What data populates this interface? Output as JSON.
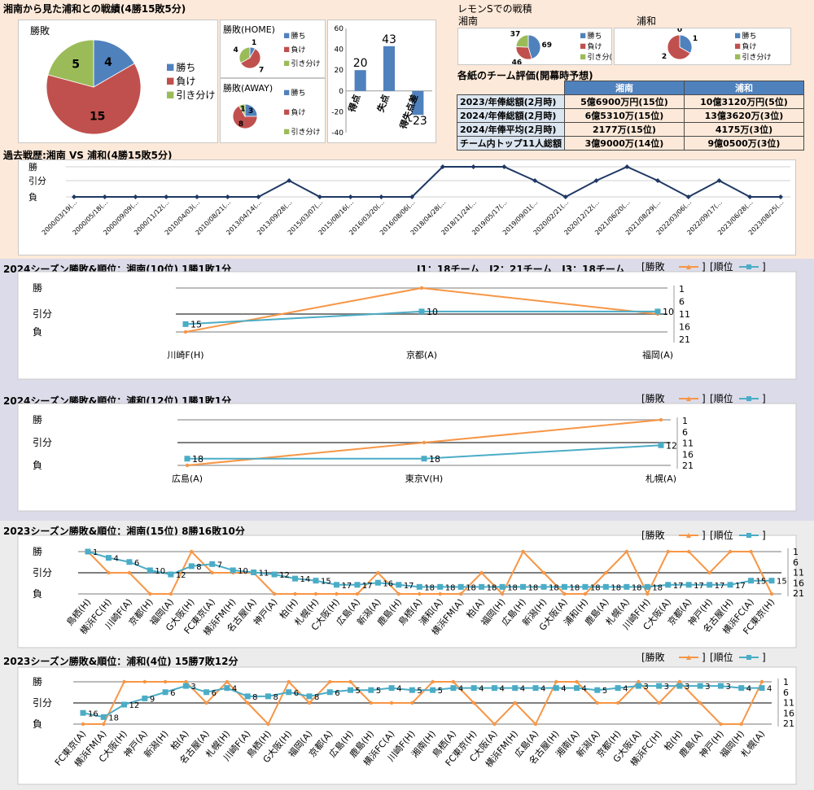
{
  "colors": {
    "win": "#4f81bd",
    "lose": "#c0504d",
    "draw": "#9bbb59",
    "result_line": "#f79646",
    "rank_line": "#4bacc6",
    "history_line": "#1f3864",
    "bg_top": "#fde9d9",
    "bg_mid": "#dcdbe9",
    "bg_bottom": "#ececec"
  },
  "summary": {
    "title": "湘南から見た浦和との戦績(4勝15敗5分)",
    "main_pie": {
      "label": "勝敗",
      "legend": [
        "勝ち",
        "負け",
        "引き分け"
      ],
      "values": [
        4,
        15,
        5
      ]
    },
    "home_pie": {
      "label": "勝敗(HOME)",
      "legend": [
        "勝ち",
        "負け",
        "引き分け"
      ],
      "values": [
        1,
        7,
        4
      ]
    },
    "away_pie": {
      "label": "勝敗(AWAY)",
      "legend": [
        "勝ち",
        "負け",
        "引き分け"
      ],
      "values": [
        3,
        8,
        1
      ]
    }
  },
  "goals_chart": {
    "categories": [
      "得点",
      "失点",
      "得失点差"
    ],
    "values": [
      20,
      43,
      -23
    ],
    "ylim": [
      -40,
      60
    ],
    "yticks": [
      "60",
      "40",
      "20",
      "0",
      "-20",
      "-40"
    ]
  },
  "lemons": {
    "title": "レモンSでの戦積",
    "shonan": {
      "label": "湘南",
      "legend": [
        "勝ち",
        "負け",
        "引き分("
      ],
      "values": [
        69,
        46,
        37
      ]
    },
    "urawa": {
      "label": "浦和",
      "legend": [
        "勝ち",
        "負け",
        "引き分け"
      ],
      "values": [
        1,
        2,
        0
      ]
    }
  },
  "evaluation": {
    "title": "各紙のチーム評価(開幕時予想)",
    "headers": [
      "湘南",
      "浦和"
    ],
    "rows": [
      {
        "label": "2023/年俸総額(2月時)",
        "shonan": "5億6900万円(15位)",
        "urawa": "10億3120万円(5位)"
      },
      {
        "label": "2024/年俸総額(2月時)",
        "shonan": "6億5310万(15位)",
        "urawa": "13億3620万(3位)"
      },
      {
        "label": "2024/年俸平均(2月時)",
        "shonan": "2177万(15位)",
        "urawa": "4175万(3位)"
      },
      {
        "label": "チーム内トップ11人総額",
        "shonan": "3億9000万(14位)",
        "urawa": "9億0500万(3位)"
      }
    ]
  },
  "history": {
    "title": "過去戦歴:湘南 VS 浦和(4勝15敗5分)",
    "ylabels": [
      "勝",
      "引分",
      "負"
    ],
    "dates": [
      "2000/03/19(...",
      "2000/05/18(...",
      "2000/09/09(...",
      "2000/11/12(...",
      "2010/04/03(...",
      "2010/08/21(...",
      "2013/04/14(...",
      "2013/09/28(...",
      "2015/03/07(...",
      "2015/08/16(...",
      "2016/03/20(...",
      "2016/08/06(...",
      "2018/04/28(...",
      "2018/11/24(...",
      "2019/05/17(...",
      "2019/09/01(...",
      "2020/02/21(...",
      "2020/12/12(...",
      "2021/06/20(...",
      "2021/08/29(...",
      "2022/03/06(...",
      "2022/09/17(...",
      "2023/06/28(...",
      "2023/08/25(..."
    ],
    "results": [
      0,
      0,
      0,
      0,
      0,
      0,
      0,
      1,
      0,
      0,
      0,
      0,
      2,
      2,
      2,
      1,
      0,
      1,
      2,
      1,
      0,
      1,
      0,
      0
    ]
  },
  "legend_labels": {
    "result": "[勝敗",
    "rank": "[順位"
  },
  "league_note": "J1：18チーム　J2：21チーム　J3：18チーム",
  "charts": [
    {
      "title": "2024シーズン勝敗&順位：湘南(10位) 1勝1敗1分",
      "ylabels": [
        "勝",
        "引分",
        "負"
      ],
      "rank_ticks": [
        "1",
        "6",
        "11",
        "16",
        "21"
      ],
      "opponents": [
        "川崎F(H)",
        "京都(A)",
        "福岡(A)"
      ],
      "results": [
        0,
        2,
        1
      ],
      "ranks": [
        15,
        10,
        10
      ]
    },
    {
      "title": "2024シーズン勝敗&順位：浦和(12位) 1勝1敗1分",
      "ylabels": [
        "勝",
        "引分",
        "負"
      ],
      "rank_ticks": [
        "1",
        "6",
        "11",
        "16",
        "21"
      ],
      "opponents": [
        "広島(A)",
        "東京V(H)",
        "札幌(A)"
      ],
      "results": [
        0,
        1,
        2
      ],
      "ranks": [
        18,
        18,
        12
      ]
    },
    {
      "title": "2023シーズン勝敗&順位：湘南(15位) 8勝16敗10分",
      "ylabels": [
        "勝",
        "引分",
        "負"
      ],
      "rank_ticks": [
        "1",
        "6",
        "11",
        "16",
        "21"
      ],
      "opponents": [
        "鳥栖(H)",
        "横浜FC(H)",
        "川崎F(A)",
        "京都(H)",
        "福岡(A)",
        "G大阪(H)",
        "FC東京(A)",
        "横浜FM(H)",
        "名古屋(A)",
        "神戸(A)",
        "柏(H)",
        "札幌(H)",
        "C大阪(H)",
        "広島(A)",
        "新潟(A)",
        "鹿島(H)",
        "鳥栖(A)",
        "浦和(A)",
        "横浜FM(A)",
        "柏(A)",
        "福岡(H)",
        "広島(H)",
        "新潟(H)",
        "G大阪(A)",
        "浦和(H)",
        "鹿島(A)",
        "札幌(A)",
        "川崎F(H)",
        "C大阪(A)",
        "京都(A)",
        "神戸(H)",
        "名古屋(H)",
        "横浜FC(A)",
        "FC東京(H)"
      ],
      "results": [
        2,
        1,
        1,
        0,
        0,
        2,
        1,
        1,
        1,
        0,
        0,
        0,
        0,
        0,
        1,
        0,
        0,
        0,
        0,
        1,
        0,
        2,
        1,
        0,
        0,
        1,
        2,
        0,
        2,
        2,
        1,
        2,
        2,
        0
      ],
      "ranks": [
        1,
        4,
        6,
        10,
        12,
        8,
        7,
        10,
        11,
        12,
        14,
        15,
        17,
        17,
        16,
        17,
        18,
        18,
        18,
        18,
        18,
        18,
        18,
        18,
        18,
        18,
        18,
        18,
        17,
        17,
        17,
        17,
        15,
        15
      ]
    },
    {
      "title": "2023シーズン勝敗&順位：浦和(4位) 15勝7敗12分",
      "ylabels": [
        "勝",
        "引分",
        "負"
      ],
      "rank_ticks": [
        "1",
        "6",
        "11",
        "16",
        "21"
      ],
      "opponents": [
        "FC東京(A)",
        "横浜FM(A)",
        "C大阪(H)",
        "神戸(A)",
        "新潟(H)",
        "柏(A)",
        "名古屋(A)",
        "札幌(H)",
        "川崎F(A)",
        "鳥栖(H)",
        "G大阪(H)",
        "福岡(A)",
        "京都(A)",
        "広島(H)",
        "鹿島(H)",
        "横浜FC(A)",
        "川崎F(H)",
        "湘南(H)",
        "鳥栖(A)",
        "FC東京(H)",
        "C大阪(A)",
        "横浜FM(H)",
        "広島(A)",
        "名古屋(H)",
        "湘南(A)",
        "新潟(A)",
        "京都(H)",
        "G大阪(A)",
        "横浜FC(H)",
        "柏(H)",
        "鹿島(A)",
        "神戸(H)",
        "福岡(H)",
        "札幌(A)"
      ],
      "results": [
        0,
        0,
        2,
        2,
        2,
        2,
        1,
        2,
        1,
        0,
        2,
        1,
        2,
        2,
        1,
        1,
        1,
        2,
        2,
        1,
        0,
        1,
        0,
        2,
        2,
        1,
        1,
        2,
        1,
        2,
        1,
        0,
        0,
        2
      ],
      "ranks": [
        16,
        18,
        12,
        9,
        6,
        3,
        6,
        4,
        8,
        8,
        6,
        8,
        6,
        5,
        5,
        4,
        5,
        5,
        4,
        4,
        4,
        4,
        4,
        4,
        4,
        5,
        4,
        3,
        3,
        3,
        3,
        3,
        4,
        4
      ]
    }
  ]
}
